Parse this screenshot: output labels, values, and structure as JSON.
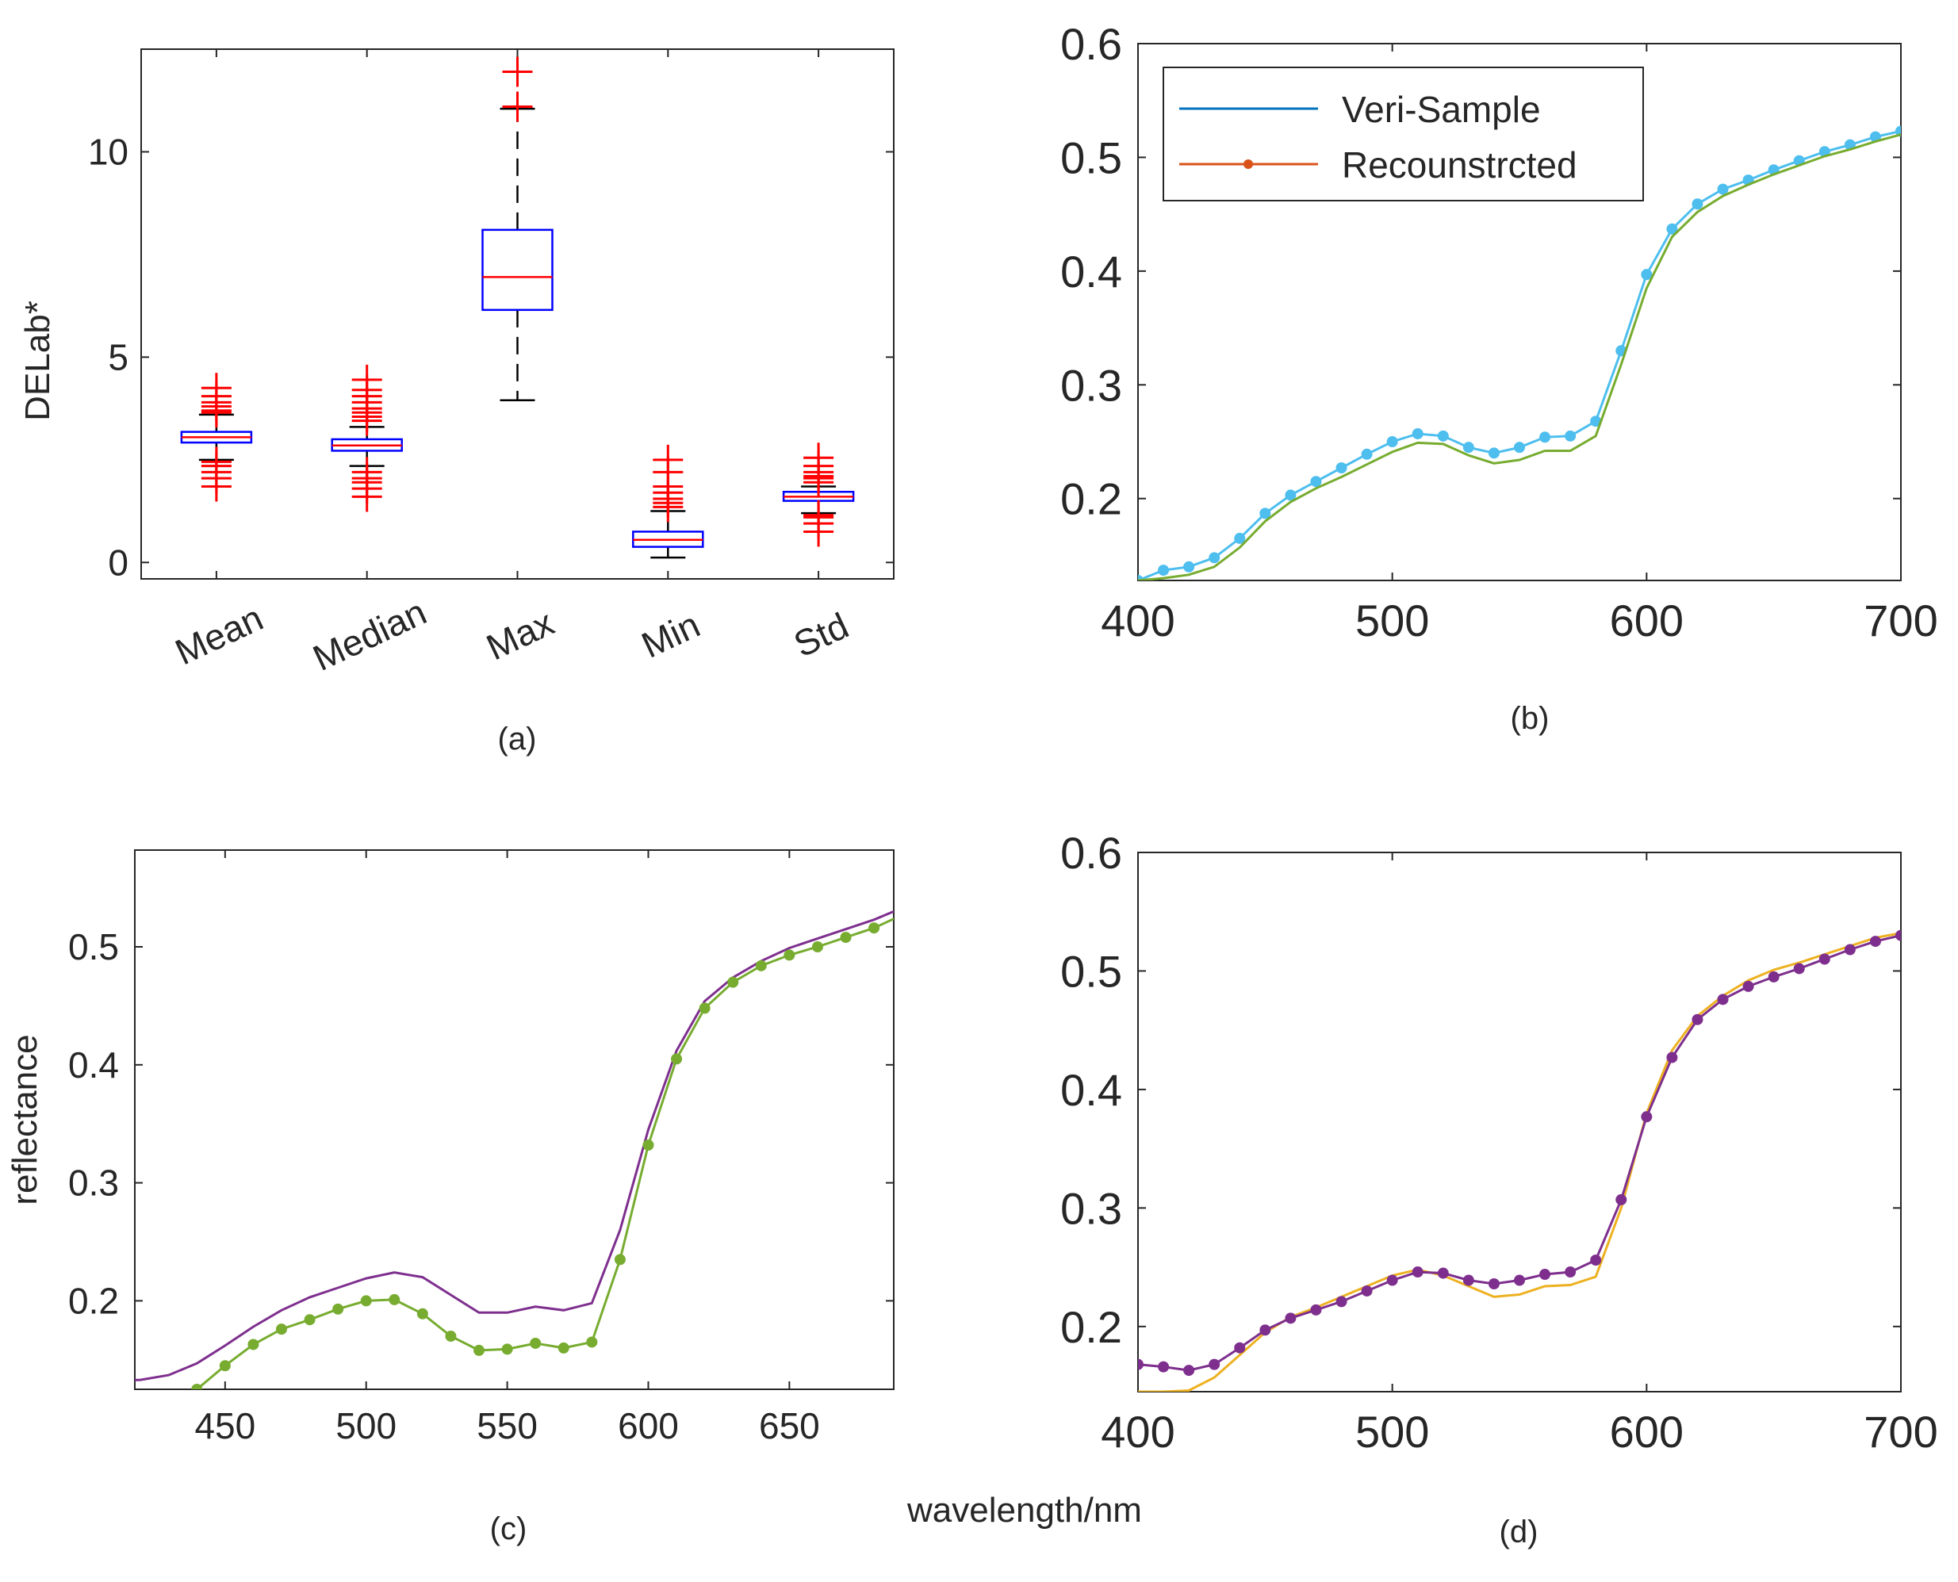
{
  "figure": {
    "xlabel_shared": "wavelength/nm"
  },
  "chart_data": [
    {
      "panel": "(a)",
      "type": "box",
      "ylabel": "DELab*",
      "categories": [
        "Mean",
        "Median",
        "Max",
        "Min",
        "Std"
      ],
      "ylim": [
        -0.4,
        12.5
      ],
      "yticks": [
        "0",
        "5",
        "10"
      ],
      "boxes": [
        {
          "name": "Mean",
          "median": 3.05,
          "q1": 2.92,
          "q3": 3.18,
          "whisker_low": 2.5,
          "whisker_high": 3.6,
          "outliers": [
            1.85,
            2.05,
            2.2,
            2.35,
            2.45,
            3.65,
            3.7,
            3.8,
            3.9,
            4.05,
            4.25
          ]
        },
        {
          "name": "Median",
          "median": 2.85,
          "q1": 2.72,
          "q3": 3.0,
          "whisker_low": 2.35,
          "whisker_high": 3.3,
          "outliers": [
            1.6,
            1.8,
            1.95,
            2.05,
            2.2,
            3.45,
            3.55,
            3.65,
            3.75,
            3.9,
            4.05,
            4.2,
            4.45
          ]
        },
        {
          "name": "Max",
          "median": 6.95,
          "q1": 6.15,
          "q3": 8.1,
          "whisker_low": 3.95,
          "whisker_high": 11.05,
          "outliers": [
            11.1,
            11.95
          ]
        },
        {
          "name": "Min",
          "median": 0.55,
          "q1": 0.38,
          "q3": 0.75,
          "whisker_low": 0.12,
          "whisker_high": 1.25,
          "outliers": [
            1.35,
            1.45,
            1.55,
            1.7,
            1.85,
            2.2,
            2.5
          ]
        },
        {
          "name": "Std",
          "median": 1.6,
          "q1": 1.5,
          "q3": 1.72,
          "whisker_low": 1.2,
          "whisker_high": 1.85,
          "outliers": [
            0.75,
            0.95,
            1.1,
            1.15,
            1.95,
            2.05,
            2.1,
            2.2,
            2.35,
            2.55
          ]
        }
      ],
      "colors": {
        "box": "#0000ff",
        "median": "#ff0000",
        "whisker": "#000000",
        "outlier": "#ff0000"
      }
    },
    {
      "panel": "(b)",
      "type": "line",
      "xlim": [
        400,
        700
      ],
      "ylim": [
        0.128,
        0.6
      ],
      "xticks": [
        "400",
        "500",
        "600",
        "700"
      ],
      "yticks": [
        "0.2",
        "0.3",
        "0.4",
        "0.5",
        "0.6"
      ],
      "legend": {
        "position": "top-left",
        "entries": [
          {
            "label": "Veri-Sample",
            "color": "#0072bd",
            "marker": false
          },
          {
            "label": "Recounstrcted",
            "color": "#d95319",
            "marker": true
          }
        ]
      },
      "x": [
        400,
        410,
        420,
        430,
        440,
        450,
        460,
        470,
        480,
        490,
        500,
        510,
        520,
        530,
        540,
        550,
        560,
        570,
        580,
        590,
        600,
        610,
        620,
        630,
        640,
        650,
        660,
        670,
        680,
        690,
        700
      ],
      "series": [
        {
          "color": "#4dbeee",
          "marker": true,
          "values": [
            0.128,
            0.137,
            0.14,
            0.148,
            0.165,
            0.187,
            0.203,
            0.215,
            0.227,
            0.239,
            0.25,
            0.257,
            0.255,
            0.245,
            0.24,
            0.245,
            0.254,
            0.255,
            0.268,
            0.33,
            0.397,
            0.437,
            0.459,
            0.472,
            0.48,
            0.489,
            0.497,
            0.505,
            0.511,
            0.518,
            0.523
          ]
        },
        {
          "color": "#77ac30",
          "marker": false,
          "values": [
            0.128,
            0.13,
            0.133,
            0.14,
            0.157,
            0.18,
            0.197,
            0.209,
            0.219,
            0.23,
            0.241,
            0.249,
            0.248,
            0.238,
            0.231,
            0.234,
            0.242,
            0.242,
            0.255,
            0.318,
            0.385,
            0.43,
            0.452,
            0.466,
            0.476,
            0.485,
            0.493,
            0.501,
            0.507,
            0.514,
            0.52
          ]
        }
      ]
    },
    {
      "panel": "(c)",
      "type": "line",
      "ylabel": "reflectance",
      "xlim": [
        418,
        687
      ],
      "ylim": [
        0.125,
        0.582
      ],
      "xticks": [
        "450",
        "500",
        "550",
        "600",
        "650"
      ],
      "yticks": [
        "0.2",
        "0.3",
        "0.4",
        "0.5"
      ],
      "x": [
        410,
        420,
        430,
        440,
        450,
        460,
        470,
        480,
        490,
        500,
        510,
        520,
        530,
        540,
        550,
        560,
        570,
        580,
        590,
        600,
        610,
        620,
        630,
        640,
        650,
        660,
        670,
        680,
        690
      ],
      "series": [
        {
          "color": "#7e2f8e",
          "marker": false,
          "values": [
            0.132,
            0.133,
            0.137,
            0.147,
            0.162,
            0.178,
            0.192,
            0.203,
            0.211,
            0.219,
            0.224,
            0.22,
            0.205,
            0.19,
            0.19,
            0.195,
            0.192,
            0.198,
            0.26,
            0.345,
            0.412,
            0.454,
            0.474,
            0.488,
            0.499,
            0.507,
            0.515,
            0.523,
            0.533
          ]
        },
        {
          "color": "#77ac30",
          "marker": true,
          "values": [
            0.098,
            0.105,
            0.112,
            0.125,
            0.145,
            0.163,
            0.176,
            0.184,
            0.193,
            0.2,
            0.201,
            0.189,
            0.17,
            0.158,
            0.159,
            0.164,
            0.16,
            0.165,
            0.235,
            0.332,
            0.405,
            0.448,
            0.47,
            0.484,
            0.493,
            0.5,
            0.508,
            0.516,
            0.527
          ]
        }
      ]
    },
    {
      "panel": "(d)",
      "type": "line",
      "xlim": [
        400,
        700
      ],
      "ylim": [
        0.145,
        0.6
      ],
      "xticks": [
        "400",
        "500",
        "600",
        "700"
      ],
      "yticks": [
        "0.2",
        "0.3",
        "0.4",
        "0.5",
        "0.6"
      ],
      "x": [
        400,
        410,
        420,
        430,
        440,
        450,
        460,
        470,
        480,
        490,
        500,
        510,
        520,
        530,
        540,
        550,
        560,
        570,
        580,
        590,
        600,
        610,
        620,
        630,
        640,
        650,
        660,
        670,
        680,
        690,
        700
      ],
      "series": [
        {
          "color": "#edb120",
          "marker": false,
          "values": [
            0.145,
            0.145,
            0.146,
            0.157,
            0.176,
            0.195,
            0.208,
            0.216,
            0.225,
            0.234,
            0.243,
            0.248,
            0.243,
            0.234,
            0.225,
            0.227,
            0.234,
            0.235,
            0.242,
            0.3,
            0.38,
            0.433,
            0.462,
            0.479,
            0.492,
            0.501,
            0.507,
            0.514,
            0.521,
            0.528,
            0.532
          ]
        },
        {
          "color": "#7e2f8e",
          "marker": true,
          "values": [
            0.168,
            0.166,
            0.163,
            0.168,
            0.182,
            0.197,
            0.207,
            0.214,
            0.221,
            0.23,
            0.239,
            0.246,
            0.245,
            0.239,
            0.236,
            0.239,
            0.244,
            0.246,
            0.256,
            0.307,
            0.377,
            0.427,
            0.459,
            0.476,
            0.487,
            0.495,
            0.502,
            0.51,
            0.518,
            0.525,
            0.53
          ]
        }
      ]
    }
  ]
}
